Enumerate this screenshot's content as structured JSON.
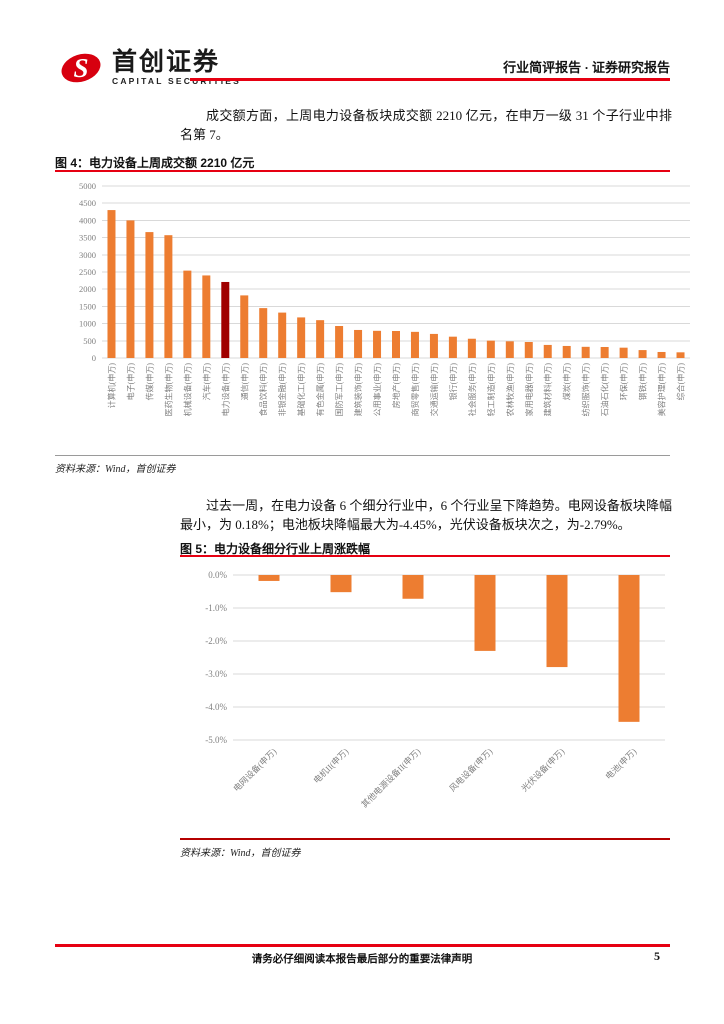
{
  "header": {
    "brand_cn": "首创证券",
    "brand_en": "CAPITAL SECURITIES",
    "report_type": "行业简评报告 · 证券研究报告"
  },
  "paragraphs": {
    "p1": "成交额方面，上周电力设备板块成交额 2210 亿元，在申万一级 31 个子行业中排名第 7。",
    "p2": "过去一周，在电力设备 6 个细分行业中，6 个行业呈下降趋势。电网设备板块降幅最小，为 0.18%；电池板块降幅最大为-4.45%，光伏设备板块次之，为-2.79%。"
  },
  "figure4": {
    "title": "图 4：电力设备上周成交额 2210 亿元",
    "source": "资料来源：Wind，首创证券"
  },
  "figure5": {
    "title": "图 5：电力设备细分行业上周涨跌幅",
    "source": "资料来源：Wind，首创证券"
  },
  "footer": {
    "disclaimer": "请务必仔细阅读本报告最后部分的重要法律声明",
    "page_number": "5"
  },
  "colors": {
    "brand_red": "#e60012",
    "bar_orange": "#ED7D31",
    "highlight_dark_red": "#A00000",
    "gridline": "#D9D9D9",
    "axis_text": "#808080"
  },
  "chart_data": [
    {
      "id": "fig4",
      "type": "bar",
      "title": "电力设备上周成交额 2210 亿元",
      "categories": [
        "计算机(申万)",
        "电子(申万)",
        "传媒(申万)",
        "医药生物(申万)",
        "机械设备(申万)",
        "汽车(申万)",
        "电力设备(申万)",
        "通信(申万)",
        "食品饮料(申万)",
        "非银金融(申万)",
        "基础化工(申万)",
        "有色金属(申万)",
        "国防军工(申万)",
        "建筑装饰(申万)",
        "公用事业(申万)",
        "房地产(申万)",
        "商贸零售(申万)",
        "交通运输(申万)",
        "银行(申万)",
        "社会服务(申万)",
        "轻工制造(申万)",
        "农林牧渔(申万)",
        "家用电器(申万)",
        "建筑材料(申万)",
        "煤炭(申万)",
        "纺织服饰(申万)",
        "石油石化(申万)",
        "环保(申万)",
        "钢铁(申万)",
        "美容护理(申万)",
        "综合(申万)"
      ],
      "values": [
        4300,
        4000,
        3660,
        3570,
        2540,
        2400,
        2210,
        1820,
        1450,
        1320,
        1180,
        1100,
        930,
        815,
        790,
        785,
        760,
        700,
        620,
        560,
        505,
        485,
        465,
        380,
        350,
        325,
        320,
        300,
        230,
        175,
        165
      ],
      "unit": "亿元",
      "ylim": [
        0,
        5000
      ],
      "yticks": [
        0,
        500,
        1000,
        1500,
        2000,
        2500,
        3000,
        3500,
        4000,
        4500,
        5000
      ],
      "percent": false,
      "grid": true,
      "bar_color": "#ED7D31",
      "highlight_index": 6,
      "highlight_color": "#A00000",
      "source": "资料来源：Wind，首创证券"
    },
    {
      "id": "fig5",
      "type": "bar",
      "title": "电力设备细分行业上周涨跌幅",
      "categories": [
        "电网设备(申万)",
        "电机II(申万)",
        "其他电源设备II(申万)",
        "风电设备(申万)",
        "光伏设备(申万)",
        "电池(申万)"
      ],
      "values": [
        -0.18,
        -0.52,
        -0.72,
        -2.3,
        -2.79,
        -4.45
      ],
      "unit": "%",
      "ylim": [
        -5,
        0
      ],
      "yticks": [
        0,
        -1,
        -2,
        -3,
        -4,
        -5
      ],
      "percent": true,
      "grid": true,
      "bar_color": "#ED7D31",
      "highlight_index": -1,
      "highlight_color": "#ED7D31",
      "source": "资料来源：Wind，首创证券"
    }
  ]
}
